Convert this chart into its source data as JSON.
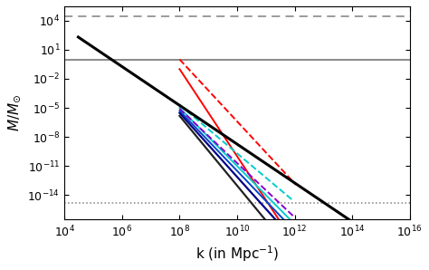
{
  "xlim": [
    10000.0,
    1e+16
  ],
  "ylim": [
    3e-17,
    300000.0
  ],
  "xlabel": "k (in Mpc$^{-1}$)",
  "ylabel": "$M/M_{\\odot}$",
  "hline_solid_y": 1.0,
  "hline_dashed_y": 30000.0,
  "hline_dotted_y": 1.5e-15,
  "bg_color": "#ffffff",
  "black_diag": {
    "k_ref": 30000.0,
    "M_ref": 200.0,
    "slope": -2.0,
    "k_start": 30000.0,
    "k_end": 3000000000000000.0,
    "color": "#000000",
    "lw": 2.2
  },
  "colored_lines": [
    {
      "label": "red_dashed",
      "color": "#ff0000",
      "ls": "--",
      "lw": 1.4,
      "k_ref": 100000000.0,
      "M_ref": 1.0,
      "slope": -3.2,
      "k_start": 100000000.0,
      "k_end": 1100000000000.0
    },
    {
      "label": "red_solid",
      "color": "#ff0000",
      "ls": "-",
      "lw": 1.4,
      "k_ref": 100000000.0,
      "M_ref": 0.1,
      "slope": -4.5,
      "k_start": 100000000.0,
      "k_end": 1100000000000.0
    },
    {
      "label": "cyan_dashed",
      "color": "#00cccc",
      "ls": "--",
      "lw": 1.4,
      "k_ref": 100000000.0,
      "M_ref": 2e-05,
      "slope": -2.5,
      "k_start": 100000000.0,
      "k_end": 800000000000.0
    },
    {
      "label": "cyan_solid",
      "color": "#00cccc",
      "ls": "-",
      "lw": 1.4,
      "k_ref": 100000000.0,
      "M_ref": 1e-05,
      "slope": -3.0,
      "k_start": 100000000.0,
      "k_end": 800000000000.0
    },
    {
      "label": "purple_dashed",
      "color": "#8800cc",
      "ls": "--",
      "lw": 1.4,
      "k_ref": 100000000.0,
      "M_ref": 8e-06,
      "slope": -2.8,
      "k_start": 100000000.0,
      "k_end": 900000000000.0
    },
    {
      "label": "blue_solid",
      "color": "#0044cc",
      "ls": "-",
      "lw": 1.4,
      "k_ref": 100000000.0,
      "M_ref": 5e-06,
      "slope": -3.1,
      "k_start": 100000000.0,
      "k_end": 900000000000.0
    },
    {
      "label": "darkblue_solid",
      "color": "#000088",
      "ls": "-",
      "lw": 1.6,
      "k_ref": 100000000.0,
      "M_ref": 3e-06,
      "slope": -3.3,
      "k_start": 100000000.0,
      "k_end": 900000000000.0
    },
    {
      "label": "black_inner",
      "color": "#222222",
      "ls": "-",
      "lw": 1.6,
      "k_ref": 100000000.0,
      "M_ref": 1.5e-06,
      "slope": -3.6,
      "k_start": 100000000.0,
      "k_end": 900000000000.0
    }
  ]
}
